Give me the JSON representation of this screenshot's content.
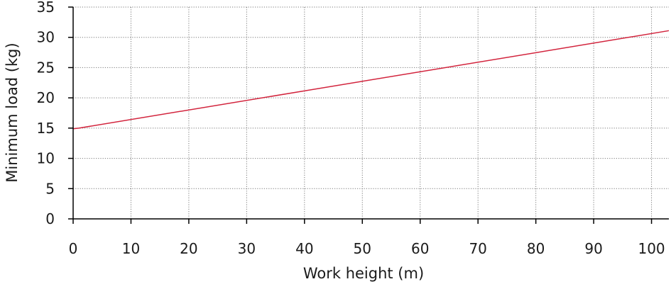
{
  "chart_data": {
    "type": "line",
    "xlabel": "Work height (m)",
    "ylabel": "Minimum load (kg)",
    "xlim": [
      0,
      103
    ],
    "ylim": [
      0,
      35
    ],
    "xticks": [
      0,
      10,
      20,
      30,
      40,
      50,
      60,
      70,
      80,
      90,
      100
    ],
    "yticks": [
      0,
      5,
      10,
      15,
      20,
      25,
      30,
      35
    ],
    "grid": true,
    "series": [
      {
        "color": "#d2233c",
        "x": [
          0,
          1,
          103
        ],
        "y": [
          14.9,
          15.0,
          31.1
        ]
      }
    ]
  }
}
